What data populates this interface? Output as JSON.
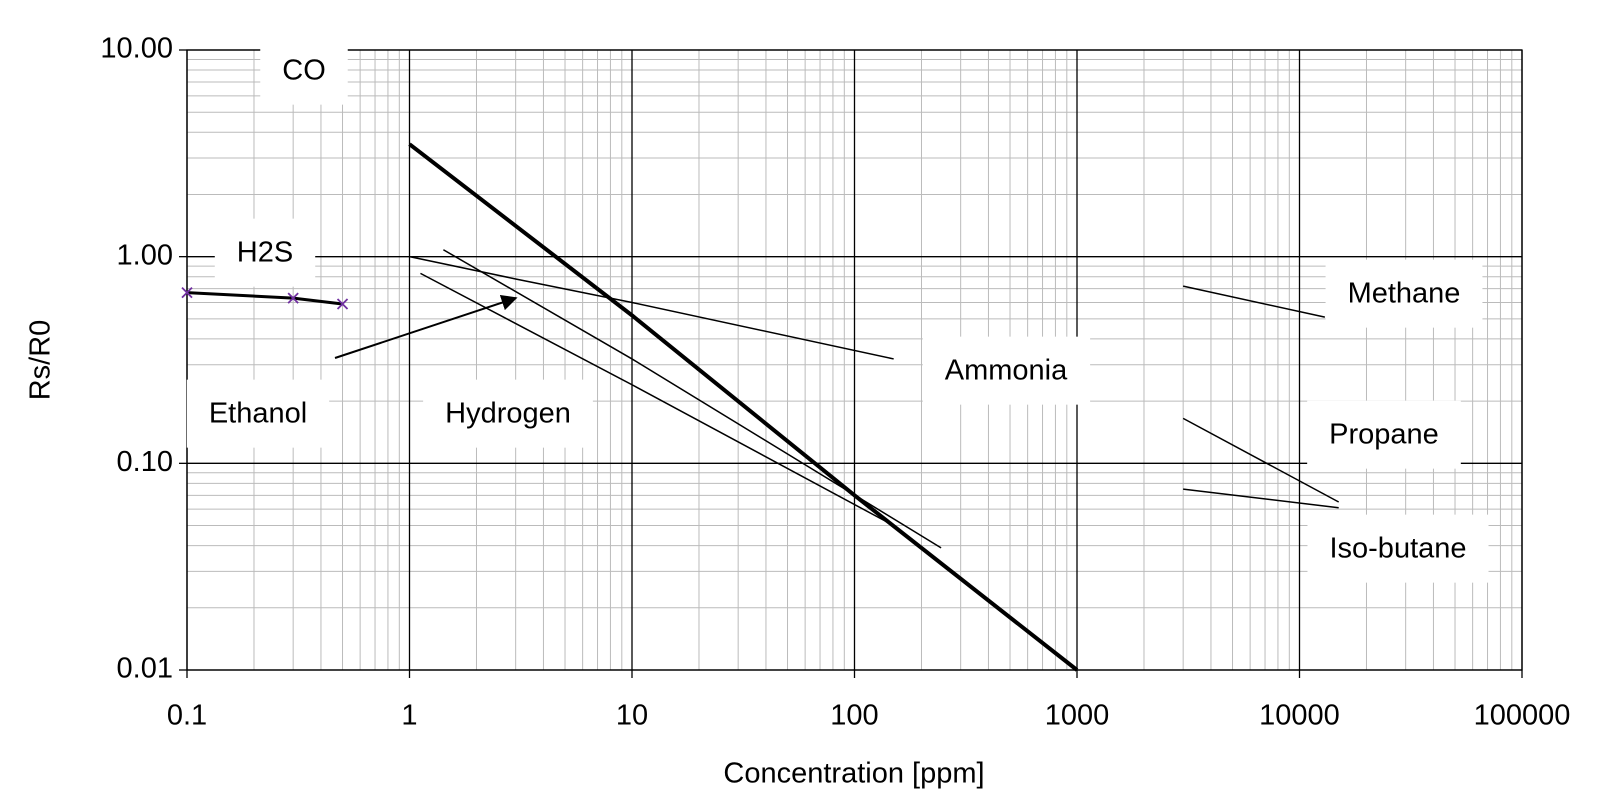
{
  "chart_data": {
    "type": "line",
    "x_label": "Concentration [ppm]",
    "y_label": "Rs/R0",
    "log_x": true,
    "log_y": true,
    "grid": true,
    "minor_grid": true,
    "xlim": [
      0.1,
      100000
    ],
    "ylim": [
      0.01,
      10
    ],
    "xticks": [
      0.1,
      1,
      10,
      100,
      1000,
      10000,
      100000
    ],
    "yticks": [
      0.01,
      {
        "value": 0.1,
        "label": "0.10"
      },
      {
        "value": 1,
        "label": "1.00"
      },
      {
        "value": 10,
        "label": "10.00"
      }
    ],
    "series": [
      {
        "name": "CO",
        "color": "#000000",
        "width": 4,
        "x": [
          1,
          10,
          100,
          1000
        ],
        "values": [
          3.5,
          0.52,
          0.07,
          0.01
        ]
      },
      {
        "name": "H2S",
        "color": "#000000",
        "marker_color": "#7030a0",
        "markers": true,
        "width": 3,
        "x": [
          0.1,
          0.3,
          0.5
        ],
        "values": [
          0.67,
          0.63,
          0.59
        ]
      },
      {
        "name": "Ethanol",
        "color": "#000000",
        "width": 1.5,
        "x": [
          1.42,
          10,
          245
        ],
        "values": [
          1.08,
          0.32,
          0.039
        ]
      },
      {
        "name": "Hydrogen",
        "color": "#000000",
        "width": 1.5,
        "x": [
          1.12,
          10,
          140
        ],
        "values": [
          0.83,
          0.24,
          0.052
        ]
      },
      {
        "name": "Ammonia",
        "color": "#000000",
        "width": 1.5,
        "x": [
          1,
          3,
          10,
          150
        ],
        "values": [
          1.0,
          0.78,
          0.6,
          0.32
        ]
      },
      {
        "name": "Methane",
        "color": "#000000",
        "width": 1.5,
        "x": [
          3000,
          13000
        ],
        "values": [
          0.72,
          0.51
        ]
      },
      {
        "name": "Propane",
        "color": "#000000",
        "width": 1.5,
        "x": [
          3000,
          15000
        ],
        "values": [
          0.165,
          0.065
        ]
      },
      {
        "name": "Iso-butane",
        "color": "#000000",
        "width": 1.5,
        "x": [
          3000,
          15000
        ],
        "values": [
          0.075,
          0.061
        ]
      }
    ]
  }
}
